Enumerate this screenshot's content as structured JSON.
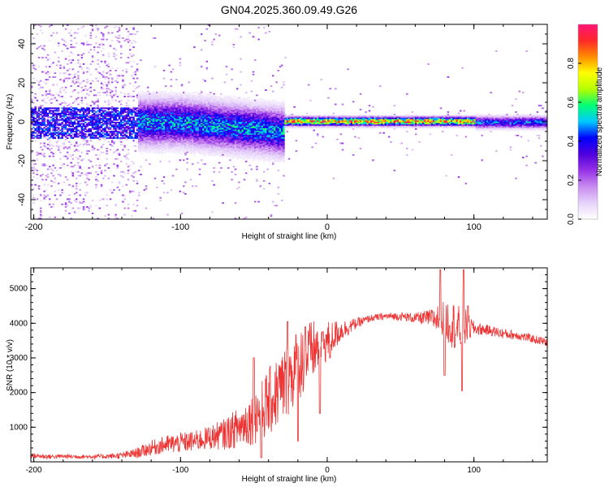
{
  "chart_data": [
    {
      "type": "heatmap",
      "title": "GN04.2025.360.09.49.G26",
      "xlabel": "Height of straight line (km)",
      "ylabel": "Frequency (Hz)",
      "xlim": [
        -202,
        150
      ],
      "ylim": [
        -50,
        50
      ],
      "xticks": [
        -200,
        -100,
        0,
        100
      ],
      "xtick_labels": [
        "-200",
        "-100",
        "0",
        "100"
      ],
      "yticks": [
        -40,
        -20,
        0,
        20,
        40
      ],
      "ytick_labels": [
        "-40",
        "-20",
        "0",
        "20",
        "40"
      ],
      "colorbar": {
        "label": "Normalized spectral amplitude",
        "range": [
          0,
          1
        ],
        "ticks": [
          0.0,
          0.2,
          0.4,
          0.6,
          0.8
        ],
        "tick_labels": [
          "0.0",
          "0.2",
          "0.4",
          "0.6",
          "0.8"
        ],
        "colors": [
          "#ffffff",
          "#e6d2fa",
          "#c88cf0",
          "#9632e6",
          "#5000dc",
          "#0000ff",
          "#00c8ff",
          "#00ff78",
          "#b4ff00",
          "#ffff00",
          "#ff8c00",
          "#ff2828",
          "#ff1478"
        ]
      },
      "regions": [
        {
          "x_range": [
            -202,
            -130
          ],
          "freq_spread": 50,
          "center_hz": 0,
          "core_amplitude": 0.25,
          "description": "diffuse scatter"
        },
        {
          "x_range": [
            -130,
            -30
          ],
          "freq_spread": 15,
          "center_hz": 0,
          "core_amplitude": 0.55,
          "description": "broadened signal"
        },
        {
          "x_range": [
            -30,
            100
          ],
          "freq_spread": 3,
          "center_hz": 0.5,
          "core_amplitude": 0.95,
          "description": "narrow strong signal"
        },
        {
          "x_range": [
            100,
            150
          ],
          "freq_spread": 4,
          "center_hz": 0,
          "core_amplitude": 0.5,
          "description": "fading signal"
        }
      ]
    },
    {
      "type": "line",
      "xlabel": "Height of straight line (km)",
      "ylabel": "SNR (10 * v/v)",
      "xlim": [
        -202,
        150
      ],
      "ylim": [
        0,
        5600
      ],
      "xticks": [
        -200,
        -100,
        0,
        100
      ],
      "xtick_labels": [
        "-200",
        "-100",
        "0",
        "100"
      ],
      "yticks": [
        1000,
        2000,
        3000,
        4000,
        5000
      ],
      "ytick_labels": [
        "1000",
        "2000",
        "3000",
        "4000",
        "5000"
      ],
      "series": [
        {
          "name": "SNR",
          "color": "#ee3333",
          "x": [
            -202,
            -190,
            -180,
            -170,
            -160,
            -150,
            -140,
            -130,
            -120,
            -110,
            -100,
            -90,
            -80,
            -70,
            -60,
            -50,
            -40,
            -30,
            -20,
            -10,
            0,
            10,
            20,
            30,
            40,
            50,
            60,
            70,
            80,
            85,
            90,
            95,
            100,
            110,
            120,
            130,
            140,
            150
          ],
          "values": [
            180,
            150,
            160,
            150,
            150,
            160,
            180,
            250,
            400,
            500,
            550,
            600,
            700,
            800,
            1000,
            1300,
            1700,
            2200,
            2800,
            3200,
            3500,
            3800,
            4000,
            4150,
            4200,
            4200,
            4150,
            4150,
            4100,
            4000,
            3800,
            3900,
            3850,
            3800,
            3700,
            3650,
            3550,
            3450
          ],
          "noise": [
            80,
            70,
            60,
            60,
            60,
            70,
            90,
            150,
            220,
            260,
            300,
            300,
            350,
            450,
            600,
            800,
            1000,
            1100,
            1100,
            900,
            600,
            300,
            150,
            100,
            100,
            120,
            150,
            250,
            600,
            700,
            700,
            500,
            200,
            150,
            150,
            130,
            120,
            120
          ],
          "peaks": [
            [
              -50,
              3000
            ],
            [
              -27,
              4050
            ],
            [
              -15,
              3900
            ],
            [
              -3,
              3750
            ],
            [
              2,
              3000
            ],
            [
              77,
              5550
            ],
            [
              80,
              4600
            ],
            [
              93,
              5550
            ],
            [
              96,
              4500
            ]
          ],
          "dips": [
            [
              -45,
              120
            ],
            [
              -20,
              600
            ],
            [
              -5,
              1400
            ],
            [
              80,
              2500
            ],
            [
              92,
              2050
            ]
          ]
        }
      ]
    }
  ]
}
